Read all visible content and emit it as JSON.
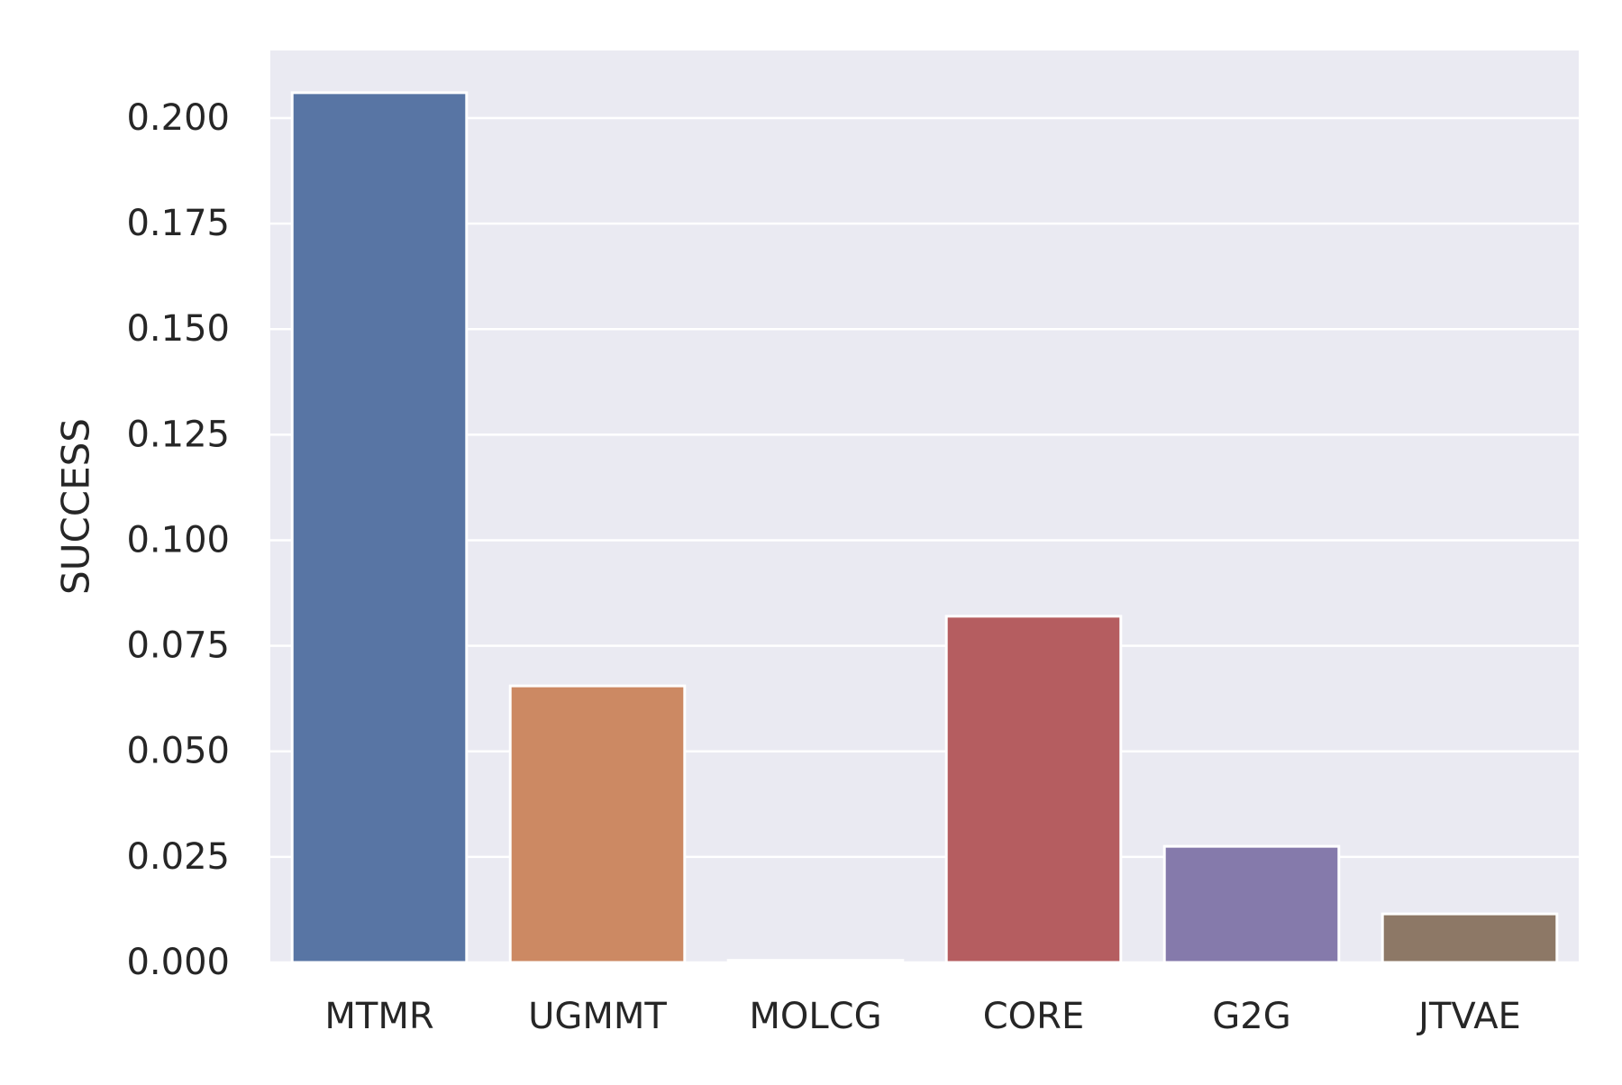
{
  "chart_data": {
    "type": "bar",
    "categories": [
      "MTMR",
      "UGMMT",
      "MOLCG",
      "CORE",
      "G2G",
      "JTVAE"
    ],
    "values": [
      0.206,
      0.0655,
      0.0005,
      0.082,
      0.0275,
      0.0115
    ],
    "colors": [
      "#5875a4",
      "#cc8963",
      "#5f9e6e",
      "#b55d60",
      "#857aab",
      "#8d7866"
    ],
    "title": "",
    "xlabel": "",
    "ylabel": "SUCCESS",
    "ylim": [
      0,
      0.216
    ],
    "yticks": [
      0.0,
      0.025,
      0.05,
      0.075,
      0.1,
      0.125,
      0.15,
      0.175,
      0.2
    ],
    "ytick_labels": [
      "0.000",
      "0.025",
      "0.050",
      "0.075",
      "0.100",
      "0.125",
      "0.150",
      "0.175",
      "0.200"
    ],
    "grid": true,
    "background": "#eaeaf2",
    "gridline_color": "#ffffff"
  }
}
